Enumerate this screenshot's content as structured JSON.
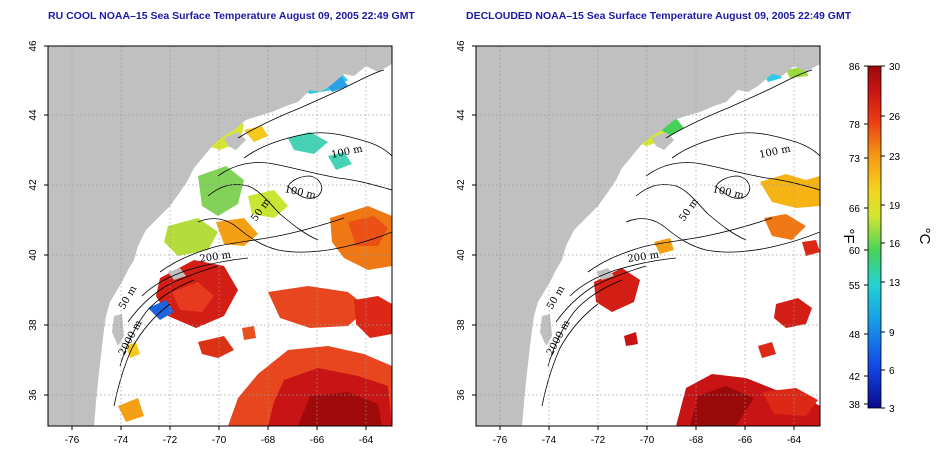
{
  "panels": [
    {
      "title": "RU COOL NOAA–15 Sea Surface Temperature August 09, 2005 22:49 GMT",
      "contour_labels": [
        "100 m",
        "100 m",
        "50 m",
        "200 m",
        "50 m",
        "2000 m"
      ]
    },
    {
      "title": "DECLOUDED NOAA–15 Sea Surface Temperature August 09, 2005 22:49 GMT",
      "contour_labels": [
        "100 m",
        "100 m",
        "50 m",
        "200 m",
        "50 m",
        "2000 m"
      ]
    }
  ],
  "axes": {
    "lon_ticks": [
      "-76",
      "-74",
      "-72",
      "-70",
      "-68",
      "-66",
      "-64"
    ],
    "lat_ticks": [
      "36",
      "38",
      "40",
      "42",
      "44",
      "46"
    ]
  },
  "colorbar": {
    "fahrenheit_ticks": [
      "86",
      "78",
      "73",
      "66",
      "60",
      "55",
      "48",
      "42",
      "38"
    ],
    "celsius_ticks": [
      "30",
      "26",
      "23",
      "19",
      "16",
      "13",
      "9",
      "6",
      "3"
    ],
    "fahrenheit_unit": "°F",
    "celsius_unit": "°C",
    "range_c": [
      3,
      30
    ]
  },
  "colors": {
    "land": "#c0c0c0",
    "title": "#1a1aa6",
    "grid": "#9a9a9a"
  }
}
